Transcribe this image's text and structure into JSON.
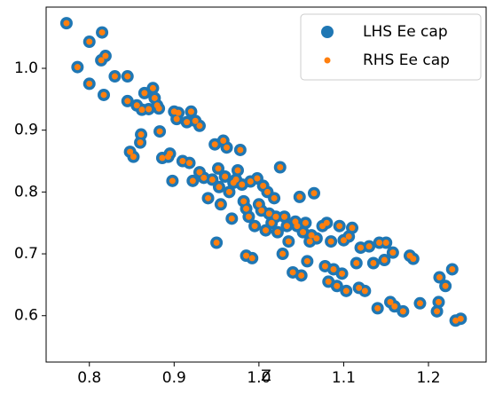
{
  "chart_data": {
    "type": "scatter",
    "x_label": "Z",
    "x": [
      0.773,
      0.786,
      0.8,
      0.8,
      0.814,
      0.815,
      0.817,
      0.819,
      0.83,
      0.845,
      0.845,
      0.848,
      0.852,
      0.856,
      0.86,
      0.861,
      0.862,
      0.865,
      0.87,
      0.875,
      0.877,
      0.88,
      0.882,
      0.883,
      0.886,
      0.893,
      0.895,
      0.898,
      0.9,
      0.903,
      0.905,
      0.91,
      0.915,
      0.918,
      0.92,
      0.922,
      0.925,
      0.93,
      0.93,
      0.935,
      0.94,
      0.945,
      0.948,
      0.95,
      0.952,
      0.953,
      0.955,
      0.958,
      0.96,
      0.962,
      0.965,
      0.968,
      0.97,
      0.973,
      0.975,
      0.978,
      0.98,
      0.982,
      0.985,
      0.985,
      0.988,
      0.99,
      0.992,
      0.995,
      0.998,
      1.0,
      1.003,
      1.005,
      1.008,
      1.01,
      1.012,
      1.015,
      1.018,
      1.02,
      1.022,
      1.025,
      1.028,
      1.03,
      1.033,
      1.035,
      1.04,
      1.043,
      1.045,
      1.048,
      1.05,
      1.052,
      1.055,
      1.057,
      1.06,
      1.062,
      1.065,
      1.068,
      1.075,
      1.078,
      1.08,
      1.082,
      1.085,
      1.088,
      1.092,
      1.095,
      1.098,
      1.1,
      1.103,
      1.106,
      1.11,
      1.115,
      1.118,
      1.12,
      1.125,
      1.13,
      1.135,
      1.14,
      1.142,
      1.148,
      1.15,
      1.155,
      1.158,
      1.16,
      1.17,
      1.178,
      1.182,
      1.19,
      1.21,
      1.212,
      1.213,
      1.22,
      1.228,
      1.232,
      1.238
    ],
    "series": [
      {
        "name": "LHS Ee cap",
        "color": "#1f77b4",
        "values": [
          1.073,
          1.002,
          1.043,
          0.975,
          1.013,
          1.058,
          0.957,
          1.02,
          0.987,
          0.987,
          0.947,
          0.865,
          0.857,
          0.94,
          0.88,
          0.893,
          0.933,
          0.96,
          0.934,
          0.968,
          0.952,
          0.94,
          0.935,
          0.898,
          0.855,
          0.857,
          0.862,
          0.818,
          0.93,
          0.918,
          0.928,
          0.85,
          0.913,
          0.847,
          0.93,
          0.818,
          0.915,
          0.907,
          0.832,
          0.823,
          0.79,
          0.82,
          0.877,
          0.718,
          0.838,
          0.808,
          0.78,
          0.883,
          0.825,
          0.872,
          0.8,
          0.757,
          0.815,
          0.82,
          0.835,
          0.868,
          0.812,
          0.785,
          0.773,
          0.697,
          0.76,
          0.817,
          0.693,
          0.745,
          0.822,
          0.78,
          0.77,
          0.81,
          0.738,
          0.8,
          0.765,
          0.75,
          0.79,
          0.76,
          0.735,
          0.84,
          0.7,
          0.76,
          0.745,
          0.72,
          0.67,
          0.752,
          0.745,
          0.792,
          0.665,
          0.735,
          0.75,
          0.688,
          0.72,
          0.73,
          0.798,
          0.725,
          0.745,
          0.68,
          0.75,
          0.655,
          0.72,
          0.675,
          0.648,
          0.745,
          0.668,
          0.722,
          0.64,
          0.728,
          0.742,
          0.685,
          0.645,
          0.71,
          0.64,
          0.712,
          0.685,
          0.612,
          0.718,
          0.69,
          0.718,
          0.622,
          0.702,
          0.615,
          0.607,
          0.697,
          0.692,
          0.62,
          0.607,
          0.622,
          0.662,
          0.648,
          0.675,
          0.592,
          0.595
        ]
      },
      {
        "name": "RHS Ee cap",
        "color": "#ff7f0e",
        "values": [
          1.073,
          1.002,
          1.043,
          0.975,
          1.013,
          1.058,
          0.957,
          1.02,
          0.987,
          0.987,
          0.947,
          0.865,
          0.857,
          0.94,
          0.88,
          0.893,
          0.933,
          0.96,
          0.934,
          0.968,
          0.952,
          0.94,
          0.935,
          0.898,
          0.855,
          0.857,
          0.862,
          0.818,
          0.93,
          0.918,
          0.928,
          0.85,
          0.913,
          0.847,
          0.93,
          0.818,
          0.915,
          0.907,
          0.832,
          0.823,
          0.79,
          0.82,
          0.877,
          0.718,
          0.838,
          0.808,
          0.78,
          0.883,
          0.825,
          0.872,
          0.8,
          0.757,
          0.815,
          0.82,
          0.835,
          0.868,
          0.812,
          0.785,
          0.773,
          0.697,
          0.76,
          0.817,
          0.693,
          0.745,
          0.822,
          0.78,
          0.77,
          0.81,
          0.738,
          0.8,
          0.765,
          0.75,
          0.79,
          0.76,
          0.735,
          0.84,
          0.7,
          0.76,
          0.745,
          0.72,
          0.67,
          0.752,
          0.745,
          0.792,
          0.665,
          0.735,
          0.75,
          0.688,
          0.72,
          0.73,
          0.798,
          0.725,
          0.745,
          0.68,
          0.75,
          0.655,
          0.72,
          0.675,
          0.648,
          0.745,
          0.668,
          0.722,
          0.64,
          0.728,
          0.742,
          0.685,
          0.645,
          0.71,
          0.64,
          0.712,
          0.685,
          0.612,
          0.718,
          0.69,
          0.718,
          0.622,
          0.702,
          0.615,
          0.607,
          0.697,
          0.692,
          0.62,
          0.607,
          0.622,
          0.662,
          0.648,
          0.675,
          0.592,
          0.595
        ]
      }
    ],
    "xlim": [
      0.749,
      1.268
    ],
    "xticks": [
      0.8,
      0.9,
      {
        "value": 1,
        "label": "1.0"
      },
      1.1,
      1.2
    ],
    "ylim": [
      0.525,
      1.099
    ],
    "yticks": [
      0.6,
      0.7,
      0.8,
      0.9,
      {
        "value": 1,
        "label": "1.0"
      }
    ],
    "grid": false,
    "legend": "upper right"
  }
}
